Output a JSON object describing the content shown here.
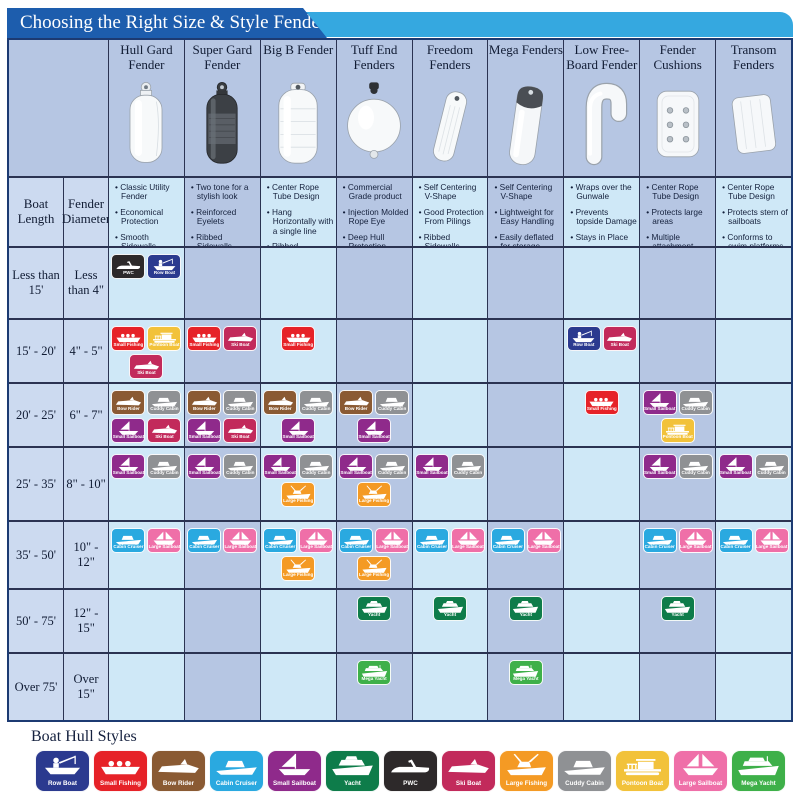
{
  "title": "Choosing the Right Size & Style Fender",
  "legend_title": "Boat Hull Styles",
  "axis": {
    "boat_length": "Boat Length",
    "fender_diameter": "Fender Diameter"
  },
  "colors": {
    "title_bar_dark": "#1d5dad",
    "title_bar_light": "#35a8e0",
    "column_light": "#cfe8f7",
    "column_periwinkle": "#b6c6e3",
    "row_header_bg": "#ccdaf0",
    "grid_line": "#2b3352"
  },
  "products": [
    {
      "id": "hull_gard",
      "name": "Hull Gard Fender",
      "features": [
        "Classic Utility Fender",
        "Economical Protection",
        "Smooth Sidewalls"
      ]
    },
    {
      "id": "super_gard",
      "name": "Super Gard Fender",
      "features": [
        "Two tone for a stylish look",
        "Reinforced Eyelets",
        "Ribbed Sidewalls"
      ]
    },
    {
      "id": "big_b",
      "name": "Big B Fender",
      "features": [
        "Center Rope Tube Design",
        "Hang Horizontally with a single line",
        "Ribbed Sidewalls"
      ]
    },
    {
      "id": "tuff_end",
      "name": "Tuff End Fenders",
      "features": [
        "Commercial Grade product",
        "Injection Molded Rope Eye",
        "Deep Hull Protection"
      ]
    },
    {
      "id": "freedom",
      "name": "Freedom Fenders",
      "features": [
        "Self Centering V-Shape",
        "Good Protection From Pilings",
        "Ribbed Sidewalls"
      ]
    },
    {
      "id": "mega",
      "name": "Mega Fenders",
      "features": [
        "Self Centering V-Shape",
        "Lightweight for Easy Handling",
        "Easily deflated for storage"
      ]
    },
    {
      "id": "low_freeboard",
      "name": "Low Free-Board Fender",
      "features": [
        "Wraps over the Gunwale",
        "Prevents topside Damage",
        "Stays in Place"
      ]
    },
    {
      "id": "fender_cushion",
      "name": "Fender Cushions",
      "features": [
        "Center Rope Tube Design",
        "Protects large areas",
        "Multiple attachment points"
      ]
    },
    {
      "id": "transom",
      "name": "Transom Fenders",
      "features": [
        "Center Rope Tube Design",
        "Protects stern of sailboats",
        "Conforms to swim platforms"
      ]
    }
  ],
  "boat_styles": [
    {
      "id": "row_boat",
      "label": "Row Boat",
      "color": "#2b3a8f",
      "glyph": "rowboat"
    },
    {
      "id": "small_fishing",
      "label": "Small Fishing",
      "color": "#e62228",
      "glyph": "openboat"
    },
    {
      "id": "bow_rider",
      "label": "Bow Rider",
      "color": "#8a5a33",
      "glyph": "speedboat"
    },
    {
      "id": "cabin_cruiser",
      "label": "Cabin Cruiser",
      "color": "#2aa9e0",
      "glyph": "cruiser"
    },
    {
      "id": "small_sailboat",
      "label": "Small Sailboat",
      "color": "#8f2a8b",
      "glyph": "sailboat1"
    },
    {
      "id": "yacht",
      "label": "Yacht",
      "color": "#0e7c4a",
      "glyph": "yacht"
    },
    {
      "id": "pwc",
      "label": "PWC",
      "color": "#2d292a",
      "glyph": "pwc"
    },
    {
      "id": "ski_boat",
      "label": "Ski Boat",
      "color": "#c22a5b",
      "glyph": "speedboat"
    },
    {
      "id": "large_fishing",
      "label": "Large Fishing",
      "color": "#f49a24",
      "glyph": "sportfish"
    },
    {
      "id": "cuddy_cabin",
      "label": "Cuddy Cabin",
      "color": "#8f9194",
      "glyph": "cruiser"
    },
    {
      "id": "pontoon_boat",
      "label": "Pontoon Boat",
      "color": "#f2c23a",
      "glyph": "pontoon"
    },
    {
      "id": "large_sailboat",
      "label": "Large Sailboat",
      "color": "#ef6fa8",
      "glyph": "sailboat2"
    },
    {
      "id": "mega_yacht",
      "label": "Mega Yacht",
      "color": "#3eb049",
      "glyph": "megayacht"
    }
  ],
  "rows": [
    {
      "boat_length": "Less than 15'",
      "fender_diameter": "Less than 4\"",
      "cells": [
        [
          "pwc",
          "row_boat"
        ],
        [],
        [],
        [],
        [],
        [],
        [],
        [],
        []
      ]
    },
    {
      "boat_length": "15' - 20'",
      "fender_diameter": "4\" - 5\"",
      "cells": [
        [
          "small_fishing",
          "pontoon_boat",
          "ski_boat"
        ],
        [
          "small_fishing",
          "ski_boat"
        ],
        [
          "small_fishing"
        ],
        [],
        [],
        [],
        [
          "row_boat",
          "ski_boat"
        ],
        [],
        []
      ]
    },
    {
      "boat_length": "20' - 25'",
      "fender_diameter": "6\" - 7\"",
      "cells": [
        [
          "bow_rider",
          "cuddy_cabin",
          "small_sailboat",
          "ski_boat"
        ],
        [
          "bow_rider",
          "cuddy_cabin",
          "small_sailboat",
          "ski_boat"
        ],
        [
          "bow_rider",
          "cuddy_cabin",
          "small_sailboat"
        ],
        [
          "bow_rider",
          "cuddy_cabin",
          "small_sailboat"
        ],
        [],
        [],
        [
          "small_fishing"
        ],
        [
          "small_sailboat",
          "cuddy_cabin",
          "pontoon_boat"
        ],
        []
      ]
    },
    {
      "boat_length": "25' - 35'",
      "fender_diameter": "8\" - 10\"",
      "cells": [
        [
          "small_sailboat",
          "cuddy_cabin"
        ],
        [
          "small_sailboat",
          "cuddy_cabin"
        ],
        [
          "small_sailboat",
          "cuddy_cabin",
          "large_fishing"
        ],
        [
          "small_sailboat",
          "cuddy_cabin",
          "large_fishing"
        ],
        [
          "small_sailboat",
          "cuddy_cabin"
        ],
        [],
        [],
        [
          "small_sailboat",
          "cuddy_cabin"
        ],
        [
          "small_sailboat",
          "cuddy_cabin"
        ]
      ]
    },
    {
      "boat_length": "35' - 50'",
      "fender_diameter": "10\" - 12\"",
      "cells": [
        [
          "cabin_cruiser",
          "large_sailboat"
        ],
        [
          "cabin_cruiser",
          "large_sailboat"
        ],
        [
          "cabin_cruiser",
          "large_sailboat",
          "large_fishing"
        ],
        [
          "cabin_cruiser",
          "large_sailboat",
          "large_fishing"
        ],
        [
          "cabin_cruiser",
          "large_sailboat"
        ],
        [
          "cabin_cruiser",
          "large_sailboat"
        ],
        [],
        [
          "cabin_cruiser",
          "large_sailboat"
        ],
        [
          "cabin_cruiser",
          "large_sailboat"
        ]
      ]
    },
    {
      "boat_length": "50' - 75'",
      "fender_diameter": "12\" - 15\"",
      "cells": [
        [],
        [],
        [],
        [
          "yacht"
        ],
        [
          "yacht"
        ],
        [
          "yacht"
        ],
        [],
        [
          "yacht"
        ],
        []
      ]
    },
    {
      "boat_length": "Over 75'",
      "fender_diameter": "Over 15\"",
      "cells": [
        [],
        [],
        [],
        [
          "mega_yacht"
        ],
        [],
        [
          "mega_yacht"
        ],
        [],
        [],
        []
      ]
    }
  ],
  "legend_order": [
    "row_boat",
    "small_fishing",
    "bow_rider",
    "cabin_cruiser",
    "small_sailboat",
    "yacht",
    "pwc",
    "ski_boat",
    "large_fishing",
    "cuddy_cabin",
    "pontoon_boat",
    "large_sailboat",
    "mega_yacht"
  ]
}
